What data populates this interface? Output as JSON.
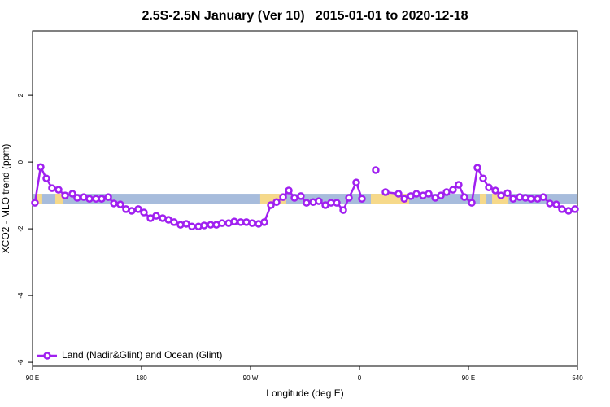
{
  "chart_data": {
    "type": "line",
    "title": "2.5S-2.5N January (Ver 10)   2015-01-01 to 2020-12-18",
    "x_label": "Longitude (deg E)",
    "y_label": "XCO2 - MLO trend (ppm)",
    "xlim": [
      90,
      540
    ],
    "ylim": [
      -6.12,
      3.93
    ],
    "xticks": [
      {
        "value": 90,
        "label": "90 E"
      },
      180,
      {
        "value": 270,
        "label": "90 W"
      },
      {
        "value": 360,
        "label": "0"
      },
      {
        "value": 450,
        "label": "90 E"
      },
      540
    ],
    "yticks": [
      -6,
      -4,
      -2,
      0,
      2
    ],
    "legend": "bottomleft",
    "band": [
      -1.25,
      -0.95
    ],
    "band_color": "#a7bcdc",
    "land_color": "#f6d98a",
    "land_ranges": [
      [
        93.4,
        98
      ],
      [
        108.8,
        115.5
      ],
      [
        278,
        299.5
      ],
      [
        369.4,
        401
      ],
      [
        459.4,
        464.8
      ],
      [
        469.5,
        483
      ]
    ],
    "x": [
      92,
      96.7,
      101.4,
      106.1,
      111.5,
      116.9,
      122.9,
      126.9,
      132.3,
      137,
      142.4,
      147.1,
      152.5,
      157.2,
      162.5,
      167.2,
      171.9,
      177.3,
      182,
      187.4,
      192.1,
      197.5,
      202.2,
      206.9,
      212.2,
      216.9,
      221.6,
      227,
      231.7,
      237.1,
      241.8,
      246.5,
      251.9,
      256.6,
      261.9,
      266.6,
      271.3,
      276.7,
      281.4,
      286.8,
      291.5,
      296.9,
      301.6,
      306.3,
      311.6,
      316.3,
      321.7,
      326.4,
      331.8,
      336.5,
      341.2,
      346.6,
      351.3,
      357.3,
      362,
      367,
      373.4,
      379,
      381.5,
      392.2,
      397,
      402.3,
      407,
      412.4,
      417.1,
      422.5,
      427.2,
      431.9,
      437.2,
      441.9,
      446.6,
      452.7,
      457.4,
      462.1,
      466.8,
      472.2,
      476.9,
      482.2,
      486.9,
      492.3,
      497,
      501.7,
      507.1,
      511.8,
      517.2,
      522.5,
      527.2,
      532.6,
      538
    ],
    "series": [
      {
        "name": "Land (Nadir&Glint) and Ocean (Glint)",
        "color": "#a020f0",
        "values": [
          -1.22,
          -0.15,
          -0.49,
          -0.78,
          -0.83,
          -1.0,
          -0.95,
          -1.07,
          -1.05,
          -1.1,
          -1.1,
          -1.1,
          -1.05,
          -1.24,
          -1.27,
          -1.41,
          -1.46,
          -1.41,
          -1.51,
          -1.68,
          -1.61,
          -1.68,
          -1.73,
          -1.8,
          -1.88,
          -1.85,
          -1.93,
          -1.93,
          -1.9,
          -1.88,
          -1.88,
          -1.83,
          -1.83,
          -1.78,
          -1.8,
          -1.8,
          -1.83,
          -1.85,
          -1.8,
          -1.29,
          -1.2,
          -1.05,
          -0.85,
          -1.07,
          -1.02,
          -1.22,
          -1.2,
          -1.17,
          -1.29,
          -1.22,
          -1.22,
          -1.44,
          -1.07,
          -0.61,
          -1.1,
          null,
          -0.24,
          null,
          -0.9,
          -0.95,
          -1.1,
          -1.02,
          -0.95,
          -1.0,
          -0.95,
          -1.07,
          -1.0,
          -0.9,
          -0.83,
          -0.68,
          -1.05,
          -1.22,
          -0.17,
          -0.49,
          -0.76,
          -0.85,
          -1.0,
          -0.93,
          -1.1,
          -1.05,
          -1.07,
          -1.1,
          -1.1,
          -1.05,
          -1.24,
          -1.27,
          -1.41,
          -1.46,
          -1.41
        ]
      }
    ]
  }
}
